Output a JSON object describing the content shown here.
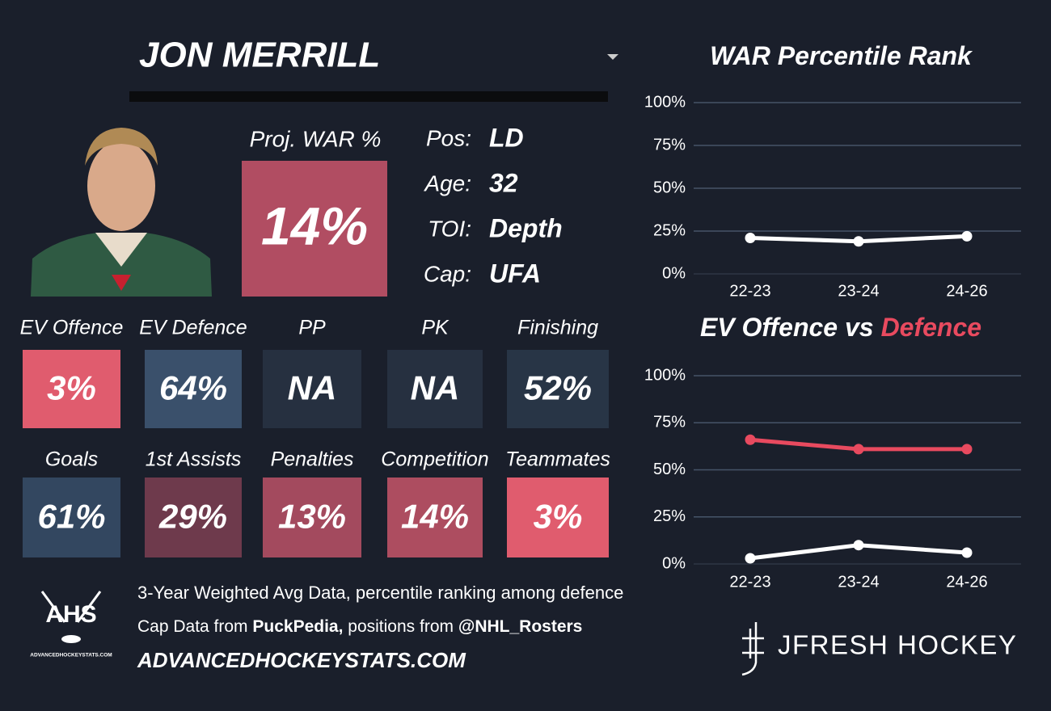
{
  "player": {
    "name": "JON MERRILL",
    "proj_label": "Proj. WAR %",
    "proj_value": "14%",
    "info": [
      {
        "label": "Pos:",
        "value": "LD"
      },
      {
        "label": "Age:",
        "value": "32"
      },
      {
        "label": "TOI:",
        "value": "Depth"
      },
      {
        "label": "Cap:",
        "value": "UFA"
      }
    ]
  },
  "tiles": [
    {
      "label": "EV Offence",
      "value": "3%",
      "color": "#e05c6e"
    },
    {
      "label": "EV Defence",
      "value": "64%",
      "color": "#3a506b"
    },
    {
      "label": "PP",
      "value": "NA",
      "color": "#263040"
    },
    {
      "label": "PK",
      "value": "NA",
      "color": "#263040"
    },
    {
      "label": "Finishing",
      "value": "52%",
      "color": "#283546"
    },
    {
      "label": "Goals",
      "value": "61%",
      "color": "#334760"
    },
    {
      "label": "1st Assists",
      "value": "29%",
      "color": "#6e3a4c"
    },
    {
      "label": "Penalties",
      "value": "13%",
      "color": "#a34a5e"
    },
    {
      "label": "Competition",
      "value": "14%",
      "color": "#ad4d60"
    },
    {
      "label": "Teammates",
      "value": "3%",
      "color": "#e05c6e"
    }
  ],
  "footer": {
    "line1": "3-Year Weighted Avg Data, percentile ranking among defence",
    "line2": [
      "Cap Data from ",
      "PuckPedia,",
      " positions from ",
      "@NHL_Rosters"
    ],
    "site": "ADVANCEDHOCKEYSTATS.COM",
    "ahs_logo": "AHS",
    "ahs_small": "ADVANCEDHOCKEYSTATS.COM",
    "brand": "JFRESH HOCKEY"
  },
  "chart_data": [
    {
      "type": "line",
      "title_parts": [
        {
          "text": "WAR Percentile Rank",
          "color": "#ffffff"
        }
      ],
      "categories": [
        "22-23",
        "23-24",
        "24-26"
      ],
      "series": [
        {
          "color": "#ffffff",
          "values": [
            21,
            19,
            22
          ]
        }
      ],
      "ylim": [
        0,
        100
      ],
      "yticks": [
        {
          "value": 0,
          "label": "0%"
        },
        {
          "value": 25,
          "label": "25%"
        },
        {
          "value": 50,
          "label": "50%"
        },
        {
          "value": 75,
          "label": "75%"
        },
        {
          "value": 100,
          "label": "100%"
        }
      ],
      "grid": true
    },
    {
      "type": "line",
      "title_parts": [
        {
          "text": "EV Offence vs",
          "color": "#ffffff"
        },
        {
          "text": "Defence",
          "color": "#e84a5f"
        }
      ],
      "categories": [
        "22-23",
        "23-24",
        "24-26"
      ],
      "series": [
        {
          "color": "#e84a5f",
          "values": [
            66,
            61,
            61
          ]
        },
        {
          "color": "#ffffff",
          "values": [
            3,
            10,
            6
          ]
        }
      ],
      "ylim": [
        0,
        100
      ],
      "yticks": [
        {
          "value": 0,
          "label": "0%"
        },
        {
          "value": 25,
          "label": "25%"
        },
        {
          "value": 50,
          "label": "50%"
        },
        {
          "value": 75,
          "label": "75%"
        },
        {
          "value": 100,
          "label": "100%"
        }
      ],
      "grid": true
    }
  ]
}
